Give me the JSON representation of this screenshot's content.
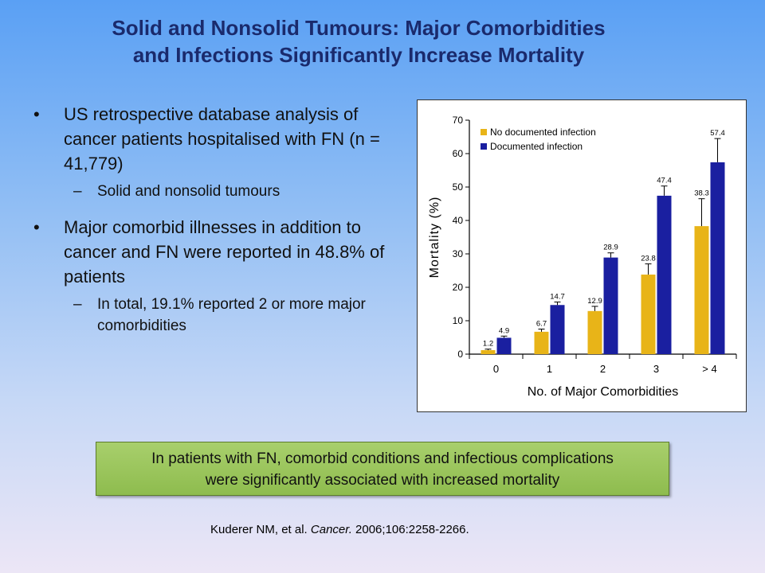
{
  "slide": {
    "title_line1": "Solid and Nonsolid Tumours: Major Comorbidities",
    "title_line2": "and Infections Significantly Increase Mortality"
  },
  "bullets": [
    {
      "text": "US retrospective database analysis of cancer patients hospitalised with FN (n = 41,779)",
      "sub": "Solid and nonsolid tumours"
    },
    {
      "text": "Major comorbid illnesses in addition to cancer and FN were reported in 48.8% of patients",
      "sub": "In total, 19.1% reported 2 or more major comorbidities"
    }
  ],
  "bullet_symbol": "•",
  "dash_symbol": "–",
  "callout": {
    "line1": "In patients with FN, comorbid conditions and infectious complications",
    "line2": "were significantly associated with increased mortality"
  },
  "citation": {
    "authors": "Kuderer NM, et al. ",
    "journal": "Cancer.",
    "details": " 2006;106:2258-2266."
  },
  "chart_data": {
    "type": "bar",
    "title": "",
    "xlabel": "No. of Major Comorbidities",
    "ylabel": "Mortality (%)",
    "categories": [
      "0",
      "1",
      "2",
      "3",
      "> 4"
    ],
    "ylim": [
      0,
      70
    ],
    "yticks": [
      0,
      10,
      20,
      30,
      40,
      50,
      60,
      70
    ],
    "legend_position": "top-left",
    "grid": false,
    "series": [
      {
        "name": "No documented infection",
        "color": "#e8b418",
        "values": [
          1.2,
          6.7,
          12.9,
          23.8,
          38.3
        ],
        "labels": [
          "1.2",
          "6.7",
          "12.9",
          "23.8",
          "38.3"
        ],
        "error_upper": [
          1.5,
          7.5,
          14.3,
          27.0,
          46.5
        ]
      },
      {
        "name": "Documented infection",
        "color": "#1a1fa0",
        "values": [
          4.9,
          14.7,
          28.9,
          47.4,
          57.4
        ],
        "labels": [
          "4.9",
          "14.7",
          "28.9",
          "47.4",
          "57.4"
        ],
        "error_upper": [
          5.4,
          15.6,
          30.3,
          50.3,
          64.5
        ]
      }
    ]
  }
}
